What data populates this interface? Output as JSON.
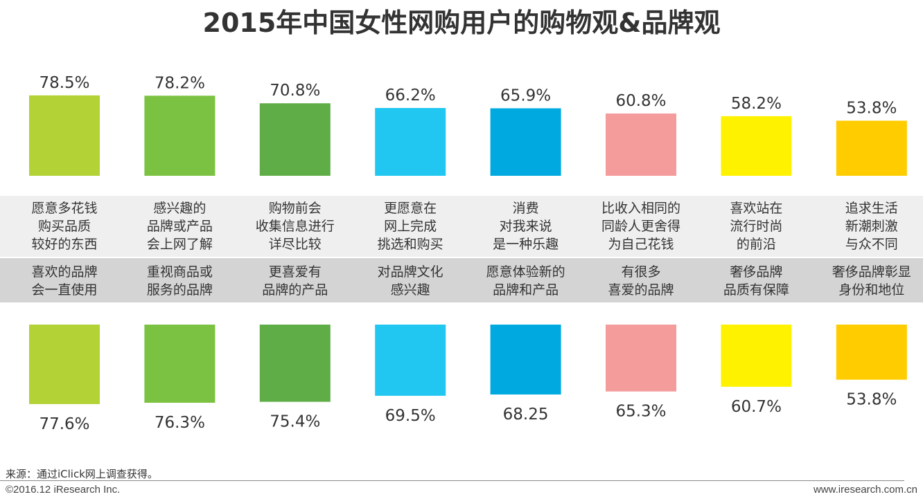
{
  "title": "2015年中国女性网购用户的购物观&品牌观",
  "chart_data": [
    {
      "type": "bar",
      "categories": [
        "愿意多花钱\n购买品质\n较好的东西",
        "感兴趣的\n品牌或产品\n会上网了解",
        "购物前会\n收集信息进行\n详尽比较",
        "更愿意在\n网上完成\n挑选和购买",
        "消费\n对我来说\n是一种乐趣",
        "比收入相同的\n同龄人更舍得\n为自己花钱",
        "喜欢站在\n流行时尚\n的前沿",
        "追求生活\n新潮刺激\n与众不同"
      ],
      "values": [
        78.5,
        78.2,
        70.8,
        66.2,
        65.9,
        60.8,
        58.2,
        53.8
      ],
      "labels": [
        "78.5%",
        "78.2%",
        "70.8%",
        "66.2%",
        "65.9%",
        "60.8%",
        "58.2%",
        "53.8%"
      ],
      "colors": [
        "#b2d235",
        "#7cc242",
        "#5fad47",
        "#21c7f0",
        "#00a9df",
        "#f49c9c",
        "#fff200",
        "#ffcc00"
      ],
      "orientation": "upward"
    },
    {
      "type": "bar",
      "categories": [
        "喜欢的品牌\n会一直使用",
        "重视商品或\n服务的品牌",
        "更喜爱有\n品牌的产品",
        "对品牌文化\n感兴趣",
        "愿意体验新的\n品牌和产品",
        "有很多\n喜爱的品牌",
        "奢侈品牌\n品质有保障",
        "奢侈品牌彰显\n身份和地位"
      ],
      "values": [
        77.6,
        76.3,
        75.4,
        69.5,
        68.25,
        65.3,
        60.7,
        53.8
      ],
      "labels": [
        "77.6%",
        "76.3%",
        "75.4%",
        "69.5%",
        "68.25",
        "65.3%",
        "60.7%",
        "53.8%"
      ],
      "colors": [
        "#b2d235",
        "#7cc242",
        "#5fad47",
        "#21c7f0",
        "#00a9df",
        "#f49c9c",
        "#fff200",
        "#ffcc00"
      ],
      "orientation": "downward"
    }
  ],
  "footer": {
    "source": "来源：通过iClick网上调查获得。",
    "copyright": "©2016.12 iResearch Inc.",
    "website": "www.iresearch.com.cn"
  }
}
